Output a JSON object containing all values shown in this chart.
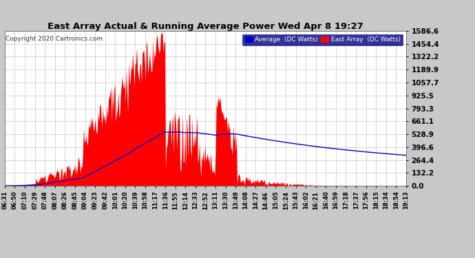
{
  "title": "East Array Actual & Running Average Power Wed Apr 8 19:27",
  "copyright": "Copyright 2020 Cartronics.com",
  "legend_avg": "Average  (DC Watts)",
  "legend_east": "East Array  (DC Watts)",
  "yticks": [
    0.0,
    132.2,
    264.4,
    396.6,
    528.9,
    661.1,
    793.3,
    925.5,
    1057.7,
    1189.9,
    1322.2,
    1454.4,
    1586.6
  ],
  "ylim": [
    0,
    1586.6
  ],
  "bg_color": "#c8c8c8",
  "plot_bg_color": "#ffffff",
  "bar_color": "#ff0000",
  "avg_color": "#0000cc",
  "grid_color": "#aaaaaa",
  "title_color": "#000000",
  "xtick_labels": [
    "06:31",
    "06:50",
    "07:10",
    "07:29",
    "07:48",
    "08:07",
    "08:26",
    "08:45",
    "09:04",
    "09:23",
    "09:42",
    "10:01",
    "10:20",
    "10:39",
    "10:58",
    "11:17",
    "11:36",
    "11:55",
    "12:14",
    "12:33",
    "12:52",
    "13:11",
    "13:30",
    "13:49",
    "14:08",
    "14:27",
    "14:46",
    "15:05",
    "15:24",
    "15:43",
    "16:02",
    "16:21",
    "16:40",
    "16:59",
    "17:18",
    "17:37",
    "17:56",
    "18:15",
    "18:34",
    "18:54",
    "19:13"
  ],
  "n_points": 500
}
